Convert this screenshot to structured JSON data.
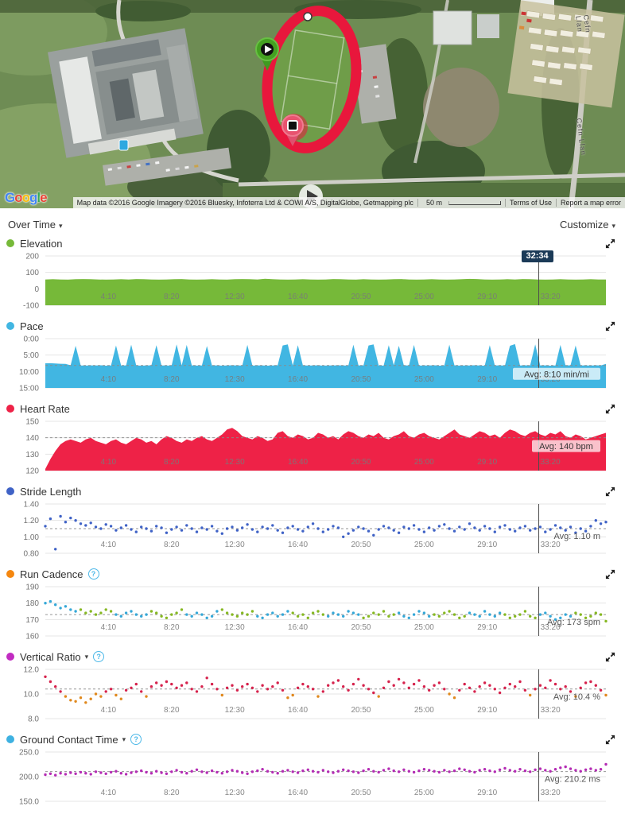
{
  "map": {
    "google_logo": "Google",
    "google_colors": [
      "#4285F4",
      "#EA4335",
      "#FBBC05",
      "#4285F4",
      "#34A853",
      "#EA4335"
    ],
    "attribution": "Map data ©2016 Google Imagery ©2016 Bluesky, Infoterra Ltd & COWI A/S, DigitalGlobe, Getmapping plc",
    "scale_label": "50 m",
    "terms_of_use": "Terms of Use",
    "report_error": "Report a map error",
    "road_label": "Cefn Llan"
  },
  "controls": {
    "view_mode": "Over Time",
    "customize": "Customize"
  },
  "ui": {
    "caret": "▾",
    "help": "?"
  },
  "cursor": {
    "label": "32:34",
    "time_s": 1954
  },
  "x_axis": {
    "labels": [
      "4:10",
      "8:20",
      "12:30",
      "16:40",
      "20:50",
      "25:00",
      "29:10",
      "33:20"
    ],
    "times_s": [
      250,
      500,
      750,
      1000,
      1250,
      1500,
      1750,
      2000
    ],
    "t_max": 2220
  },
  "chart_data": [
    {
      "type": "area",
      "title": "Elevation",
      "bullet": "#76b939",
      "color": "#76b939",
      "ylim": [
        -100,
        200
      ],
      "yticks": [
        {
          "v": 200,
          "label": "200"
        },
        {
          "v": 100,
          "label": "100"
        },
        {
          "v": 0,
          "label": "0"
        },
        {
          "v": -100,
          "label": "-100"
        }
      ],
      "x_step": 30,
      "unit": "m",
      "values": [
        57,
        58,
        57,
        56,
        58,
        59,
        58,
        57,
        56,
        57,
        58,
        57,
        59,
        58,
        57,
        56,
        57,
        58,
        59,
        57,
        56,
        57,
        58,
        57,
        56,
        58,
        59,
        58,
        57,
        61,
        58,
        57,
        56,
        57,
        58,
        57,
        56,
        57,
        59,
        58,
        57,
        56,
        58,
        57,
        56,
        57,
        58,
        59,
        57,
        56,
        57,
        58,
        57,
        56,
        57,
        58,
        60,
        59,
        57,
        56,
        57,
        58,
        57,
        59,
        58,
        57,
        56,
        57,
        58,
        57,
        56,
        57,
        58,
        57,
        57
      ]
    },
    {
      "type": "area",
      "title": "Pace",
      "bullet": "#41b6e2",
      "color": "#41b6e2",
      "inverted": true,
      "ylim": [
        0,
        900
      ],
      "yticks": [
        {
          "v": 0,
          "label": "0:00"
        },
        {
          "v": 300,
          "label": "5:00"
        },
        {
          "v": 600,
          "label": "10:00"
        },
        {
          "v": 900,
          "label": "15:00"
        }
      ],
      "x_step": 20,
      "unit": "min/mi",
      "avg_value": 490,
      "avg_label": "Avg: 8:10 min/mi",
      "avg_boxed": true,
      "values": [
        450,
        448,
        455,
        458,
        462,
        486,
        130,
        489,
        492,
        488,
        491,
        487,
        493,
        490,
        125,
        492,
        488,
        110,
        489,
        493,
        490,
        487,
        120,
        491,
        489,
        493,
        105,
        490,
        115,
        488,
        492,
        489,
        135,
        491,
        488,
        493,
        490,
        487,
        491,
        489,
        115,
        492,
        488,
        490,
        493,
        489,
        487,
        125,
        105,
        491,
        120,
        488,
        492,
        490,
        486,
        493,
        489,
        491,
        487,
        490,
        492,
        110,
        488,
        491,
        125,
        105,
        489,
        492,
        120,
        487,
        130,
        490,
        488,
        115,
        492,
        489,
        491,
        487,
        493,
        490,
        110,
        488,
        492,
        489,
        491,
        487,
        490,
        493,
        120,
        489,
        488,
        492,
        130,
        100,
        489,
        487,
        491,
        105,
        490,
        488,
        493,
        489,
        115,
        491,
        487,
        125,
        490,
        488,
        492,
        486,
        489,
        460
      ]
    },
    {
      "type": "area",
      "title": "Heart Rate",
      "bullet": "#ee2247",
      "color": "#ee2247",
      "ylim": [
        120,
        150
      ],
      "yticks": [
        {
          "v": 150,
          "label": "150"
        },
        {
          "v": 140,
          "label": "140"
        },
        {
          "v": 130,
          "label": "130"
        },
        {
          "v": 120,
          "label": "120"
        }
      ],
      "x_step": 20,
      "unit": "bpm",
      "avg_value": 140,
      "avg_label": "Avg: 140 bpm",
      "avg_boxed": true,
      "values": [
        121,
        127,
        132,
        136,
        138,
        139,
        138,
        137,
        139,
        140,
        138,
        137,
        136,
        138,
        139,
        137,
        136,
        138,
        140,
        139,
        137,
        138,
        136,
        139,
        141,
        140,
        138,
        137,
        139,
        138,
        140,
        141,
        139,
        138,
        140,
        142,
        145,
        146,
        144,
        141,
        140,
        139,
        141,
        140,
        138,
        139,
        143,
        144,
        141,
        140,
        142,
        141,
        139,
        140,
        143,
        142,
        140,
        141,
        139,
        142,
        144,
        143,
        141,
        140,
        142,
        141,
        143,
        140,
        139,
        141,
        142,
        144,
        141,
        140,
        142,
        143,
        141,
        140,
        139,
        141,
        143,
        145,
        142,
        141,
        140,
        142,
        144,
        143,
        141,
        142,
        140,
        143,
        145,
        144,
        142,
        141,
        143,
        144,
        142,
        141,
        143,
        142,
        144,
        141,
        140,
        142,
        141,
        139,
        140,
        141,
        142,
        143
      ]
    },
    {
      "type": "scatter",
      "title": "Stride Length",
      "bullet": "#3f62c6",
      "color": "#3f62c6",
      "ylim": [
        0.8,
        1.4
      ],
      "yticks": [
        {
          "v": 1.4,
          "label": "1.40"
        },
        {
          "v": 1.2,
          "label": "1.20"
        },
        {
          "v": 1.0,
          "label": "1.00"
        },
        {
          "v": 0.8,
          "label": "0.80"
        }
      ],
      "x_step": 20,
      "unit": "m",
      "avg_value": 1.1,
      "avg_label": "Avg: 1.10 m",
      "avg_boxed": false,
      "values": [
        1.13,
        1.22,
        0.85,
        1.25,
        1.18,
        1.23,
        1.2,
        1.16,
        1.14,
        1.17,
        1.12,
        1.1,
        1.15,
        1.13,
        1.08,
        1.11,
        1.14,
        1.09,
        1.06,
        1.12,
        1.1,
        1.07,
        1.13,
        1.11,
        1.05,
        1.09,
        1.12,
        1.08,
        1.14,
        1.1,
        1.06,
        1.11,
        1.09,
        1.13,
        1.07,
        1.04,
        1.1,
        1.12,
        1.08,
        1.11,
        1.15,
        1.09,
        1.06,
        1.12,
        1.1,
        1.14,
        1.08,
        1.05,
        1.11,
        1.13,
        1.09,
        1.07,
        1.12,
        1.16,
        1.1,
        1.06,
        1.09,
        1.13,
        1.11,
        1.0,
        1.04,
        1.08,
        1.12,
        1.1,
        1.07,
        1.02,
        1.09,
        1.13,
        1.11,
        1.08,
        1.05,
        1.12,
        1.1,
        1.14,
        1.09,
        1.06,
        1.11,
        1.08,
        1.13,
        1.15,
        1.1,
        1.07,
        1.12,
        1.09,
        1.16,
        1.11,
        1.08,
        1.13,
        1.1,
        1.06,
        1.12,
        1.14,
        1.09,
        1.07,
        1.11,
        1.13,
        1.08,
        1.1,
        1.12,
        1.06,
        1.09,
        1.14,
        1.11,
        1.08,
        1.12,
        1.05,
        1.1,
        1.07,
        1.13,
        1.2,
        1.16,
        1.18
      ]
    },
    {
      "type": "scatter",
      "title": "Run Cadence",
      "bullet": "#f5870f",
      "color": "#35a8d8",
      "has_help": true,
      "alt_colors": [
        "#35a8d8",
        "#86b822"
      ],
      "alt_block": 7,
      "ylim": [
        160,
        190
      ],
      "yticks": [
        {
          "v": 190,
          "label": "190"
        },
        {
          "v": 180,
          "label": "180"
        },
        {
          "v": 170,
          "label": "170"
        },
        {
          "v": 160,
          "label": "160"
        }
      ],
      "x_step": 20,
      "unit": "spm",
      "avg_value": 173,
      "avg_label": "Avg: 173 spm",
      "avg_boxed": false,
      "values": [
        180,
        181,
        179,
        177,
        178,
        176,
        175,
        176,
        174,
        175,
        173,
        174,
        176,
        175,
        173,
        172,
        174,
        175,
        173,
        172,
        173,
        175,
        174,
        172,
        171,
        173,
        174,
        176,
        173,
        172,
        174,
        173,
        171,
        172,
        175,
        176,
        174,
        173,
        172,
        174,
        173,
        175,
        172,
        171,
        173,
        174,
        172,
        173,
        175,
        174,
        172,
        173,
        171,
        174,
        175,
        173,
        172,
        174,
        173,
        172,
        175,
        174,
        173,
        171,
        172,
        174,
        173,
        175,
        172,
        173,
        174,
        172,
        171,
        173,
        175,
        174,
        172,
        173,
        172,
        174,
        175,
        173,
        171,
        172,
        174,
        173,
        172,
        175,
        173,
        172,
        174,
        173,
        171,
        172,
        173,
        175,
        172,
        171,
        173,
        174,
        172,
        170,
        171,
        173,
        172,
        174,
        173,
        171,
        172,
        174,
        173,
        169
      ]
    },
    {
      "type": "scatter",
      "title": "Vertical Ratio",
      "bullet": "#c12bc1",
      "color": "#d6224c",
      "has_caret": true,
      "has_help": true,
      "low_color": "#e0881c",
      "low_threshold": 10.1,
      "ylim": [
        8,
        12
      ],
      "yticks": [
        {
          "v": 12,
          "label": "12.0"
        },
        {
          "v": 10,
          "label": "10.0"
        },
        {
          "v": 8,
          "label": "8.0"
        }
      ],
      "x_step": 20,
      "unit": "%",
      "avg_value": 10.4,
      "avg_label": "Avg: 10.4 %",
      "avg_boxed": false,
      "values": [
        11.4,
        11.0,
        10.6,
        10.2,
        9.8,
        9.5,
        9.4,
        9.7,
        9.3,
        9.6,
        10.0,
        9.8,
        10.2,
        10.4,
        9.9,
        9.6,
        10.3,
        10.5,
        10.8,
        10.2,
        9.8,
        10.6,
        10.9,
        10.7,
        11.0,
        10.8,
        10.5,
        10.7,
        10.9,
        10.4,
        10.2,
        10.6,
        11.3,
        10.8,
        10.4,
        9.9,
        10.5,
        10.7,
        10.3,
        10.6,
        10.8,
        10.5,
        10.2,
        10.7,
        10.4,
        10.6,
        10.9,
        10.3,
        9.7,
        9.9,
        10.5,
        10.8,
        10.6,
        10.4,
        9.8,
        10.2,
        10.7,
        10.9,
        11.1,
        10.6,
        10.3,
        10.8,
        11.2,
        10.7,
        10.4,
        10.1,
        9.8,
        10.5,
        11.0,
        10.7,
        11.2,
        10.9,
        10.5,
        10.8,
        11.1,
        10.6,
        10.3,
        10.7,
        10.9,
        10.4,
        10.0,
        9.7,
        10.3,
        10.8,
        10.5,
        10.2,
        10.6,
        10.9,
        10.7,
        10.4,
        10.1,
        10.5,
        10.8,
        10.6,
        11.0,
        10.3,
        9.9,
        10.4,
        10.7,
        10.5,
        11.1,
        10.8,
        10.4,
        10.6,
        10.2,
        9.8,
        10.5,
        10.9,
        11.0,
        10.7,
        10.3,
        9.9
      ]
    },
    {
      "type": "scatter",
      "title": "Ground Contact Time",
      "bullet": "#3eb1e1",
      "color": "#b42cb4",
      "has_caret": true,
      "has_help": true,
      "ylim": [
        150,
        250
      ],
      "yticks": [
        {
          "v": 250,
          "label": "250.0"
        },
        {
          "v": 200,
          "label": "200.0"
        },
        {
          "v": 150,
          "label": "150.0"
        }
      ],
      "x_step": 20,
      "unit": "ms",
      "avg_value": 210.2,
      "avg_label": "Avg: 210.2 ms",
      "avg_boxed": false,
      "values": [
        204,
        206,
        203,
        207,
        205,
        208,
        206,
        209,
        207,
        205,
        210,
        208,
        206,
        209,
        211,
        207,
        205,
        208,
        210,
        212,
        209,
        207,
        211,
        208,
        206,
        210,
        213,
        209,
        207,
        211,
        214,
        210,
        208,
        212,
        209,
        207,
        210,
        213,
        211,
        208,
        206,
        210,
        212,
        215,
        211,
        209,
        207,
        211,
        213,
        210,
        208,
        212,
        214,
        211,
        209,
        213,
        210,
        208,
        211,
        214,
        212,
        210,
        208,
        212,
        215,
        211,
        209,
        213,
        216,
        212,
        210,
        214,
        211,
        209,
        212,
        215,
        213,
        211,
        209,
        213,
        210,
        212,
        216,
        214,
        211,
        209,
        213,
        215,
        212,
        210,
        214,
        217,
        213,
        211,
        215,
        212,
        210,
        214,
        216,
        213,
        211,
        215,
        218,
        220,
        216,
        213,
        211,
        214,
        216,
        213,
        215,
        225
      ]
    }
  ]
}
